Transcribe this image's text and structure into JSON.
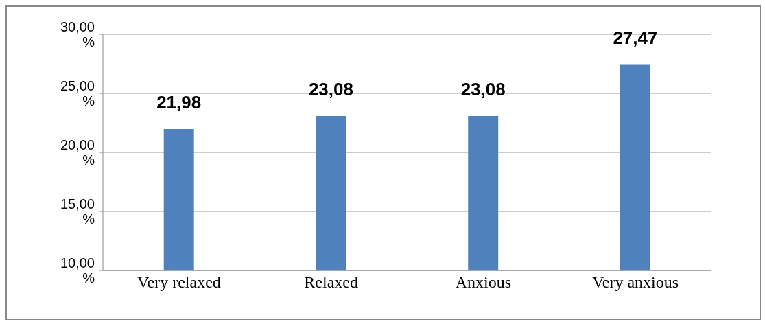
{
  "chart_data": {
    "type": "bar",
    "categories": [
      "Very relaxed",
      "Relaxed",
      "Anxious",
      "Very anxious"
    ],
    "values": [
      21.98,
      23.08,
      23.08,
      27.47
    ],
    "value_labels": [
      "21,98",
      "23,08",
      "23,08",
      "27,47"
    ],
    "color": "#4f81bd",
    "ylim": [
      10,
      30
    ],
    "yticks": [
      {
        "value": 10,
        "label": "10,00 %"
      },
      {
        "value": 15,
        "label": "15,00 %"
      },
      {
        "value": 20,
        "label": "20,00 %"
      },
      {
        "value": 25,
        "label": "25,00 %"
      },
      {
        "value": 30,
        "label": "30,00 %"
      }
    ],
    "grid": "y"
  }
}
